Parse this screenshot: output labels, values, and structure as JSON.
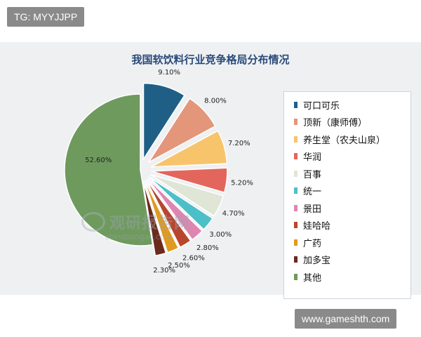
{
  "tags": {
    "top": "TG: MYYJJPP",
    "bottom": "www.gameshth.com"
  },
  "watermark": {
    "text": "观研报告网",
    "sub": "chinabaogao.com"
  },
  "chart_data": {
    "type": "pie",
    "title": "我国软饮料行业竞争格局分布情况",
    "legend_position": "right",
    "slices": [
      {
        "name": "可口可乐",
        "value": 9.1,
        "label": "9.10%",
        "color": "#1f5f86"
      },
      {
        "name": "顶新（康师傅）",
        "value": 8.0,
        "label": "8.00%",
        "color": "#e3967a"
      },
      {
        "name": "养生堂（农夫山泉）",
        "value": 7.2,
        "label": "7.20%",
        "color": "#f7c46c"
      },
      {
        "name": "华润",
        "value": 5.2,
        "label": "5.20%",
        "color": "#e3665c"
      },
      {
        "name": "百事",
        "value": 4.7,
        "label": "4.70%",
        "color": "#dfe6d6"
      },
      {
        "name": "统一",
        "value": 3.0,
        "label": "3.00%",
        "color": "#4cc0c8"
      },
      {
        "name": "景田",
        "value": 2.8,
        "label": "2.80%",
        "color": "#de86b2"
      },
      {
        "name": "娃哈哈",
        "value": 2.6,
        "label": "2.60%",
        "color": "#b8462e"
      },
      {
        "name": "广药",
        "value": 2.5,
        "label": "2.50%",
        "color": "#e09a20"
      },
      {
        "name": "加多宝",
        "value": 2.3,
        "label": "2.30%",
        "color": "#6b2a1c"
      },
      {
        "name": "其他",
        "value": 52.6,
        "label": "52.60%",
        "color": "#6f9a5e"
      }
    ]
  }
}
